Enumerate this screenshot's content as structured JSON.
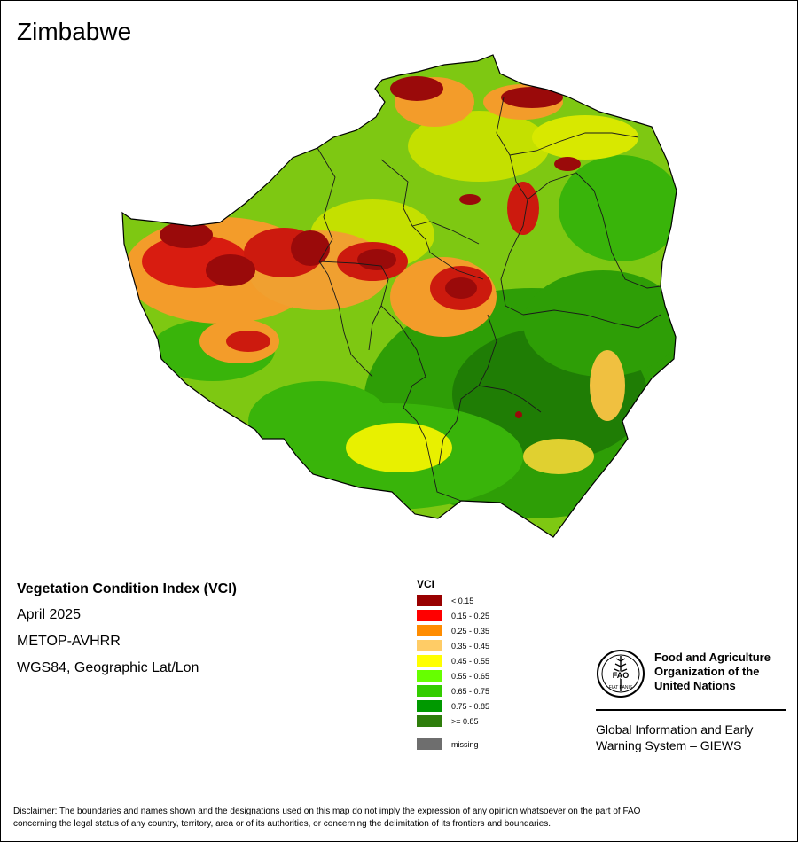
{
  "title": "Zimbabwe",
  "info": {
    "index_name": "Vegetation Condition Index (VCI)",
    "period": "April 2025",
    "sensor": "METOP-AVHRR",
    "projection": "WGS84, Geographic Lat/Lon"
  },
  "legend": {
    "title": "VCI",
    "classes": [
      {
        "label": "< 0.15",
        "color": "#990000"
      },
      {
        "label": "0.15 - 0.25",
        "color": "#ff0000"
      },
      {
        "label": "0.25 - 0.35",
        "color": "#ff8c00"
      },
      {
        "label": "0.35 - 0.45",
        "color": "#ffcc66"
      },
      {
        "label": "0.45 - 0.55",
        "color": "#ffff00"
      },
      {
        "label": "0.55 - 0.65",
        "color": "#66ff00"
      },
      {
        "label": "0.65 - 0.75",
        "color": "#33cc00"
      },
      {
        "label": "0.75 - 0.85",
        "color": "#009900"
      },
      {
        "label": ">= 0.85",
        "color": "#2e7d0b"
      }
    ],
    "missing": {
      "label": "missing",
      "color": "#6e6e6e"
    }
  },
  "logo": {
    "org_line1": "Food and Agriculture",
    "org_line2": "Organization of the",
    "org_line3": "United Nations",
    "emblem_text": "FAO",
    "emblem_motto": "FIAT PANIS",
    "system_line1": "Global Information and Early",
    "system_line2": "Warning System – GIEWS"
  },
  "disclaimer_line1": "Disclaimer: The boundaries and names shown and the designations used on this map do not imply the expression of any opinion whatsoever on the part of FAO",
  "disclaimer_line2": "concerning the legal status of any country, territory, area or of its authorities, or concerning the delimitation of its frontiers and boundaries."
}
